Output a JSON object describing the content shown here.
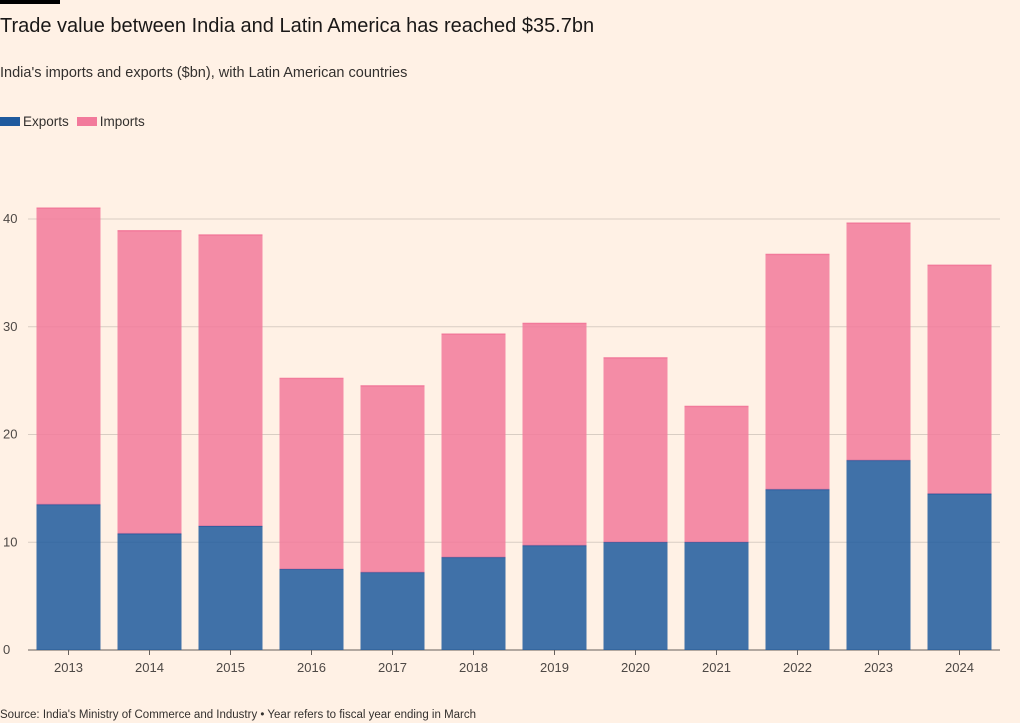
{
  "header": {
    "title": "Trade value between India and Latin America has reached $35.7bn",
    "subtitle": "India's imports and exports ($bn), with Latin American countries"
  },
  "legend": [
    {
      "label": "Exports",
      "color": "#1f5a9e"
    },
    {
      "label": "Imports",
      "color": "#f27a9b"
    }
  ],
  "footer": {
    "source": "Source: India's Ministry of Commerce and Industry • Year refers to fiscal year ending in March"
  },
  "chart_data": {
    "type": "bar",
    "stacked": true,
    "title": "Trade value between India and Latin America has reached $35.7bn",
    "subtitle": "India's imports and exports ($bn), with Latin American countries",
    "categories": [
      "2013",
      "2014",
      "2015",
      "2016",
      "2017",
      "2018",
      "2019",
      "2020",
      "2021",
      "2022",
      "2023",
      "2024"
    ],
    "series": [
      {
        "name": "Exports",
        "color": "#1f5a9e",
        "values": [
          13.5,
          10.8,
          11.5,
          7.5,
          7.2,
          8.6,
          9.7,
          10.0,
          10.0,
          14.9,
          17.6,
          14.5
        ]
      },
      {
        "name": "Imports",
        "color": "#f27a9b",
        "values": [
          27.5,
          28.1,
          27.0,
          17.7,
          17.3,
          20.7,
          20.6,
          17.1,
          12.6,
          21.8,
          22.0,
          21.2
        ]
      }
    ],
    "xlabel": "",
    "ylabel": "",
    "ylim": [
      0,
      40
    ],
    "yticks": [
      0,
      10,
      20,
      30,
      40
    ],
    "grid": true,
    "legend_position": "top-left"
  }
}
